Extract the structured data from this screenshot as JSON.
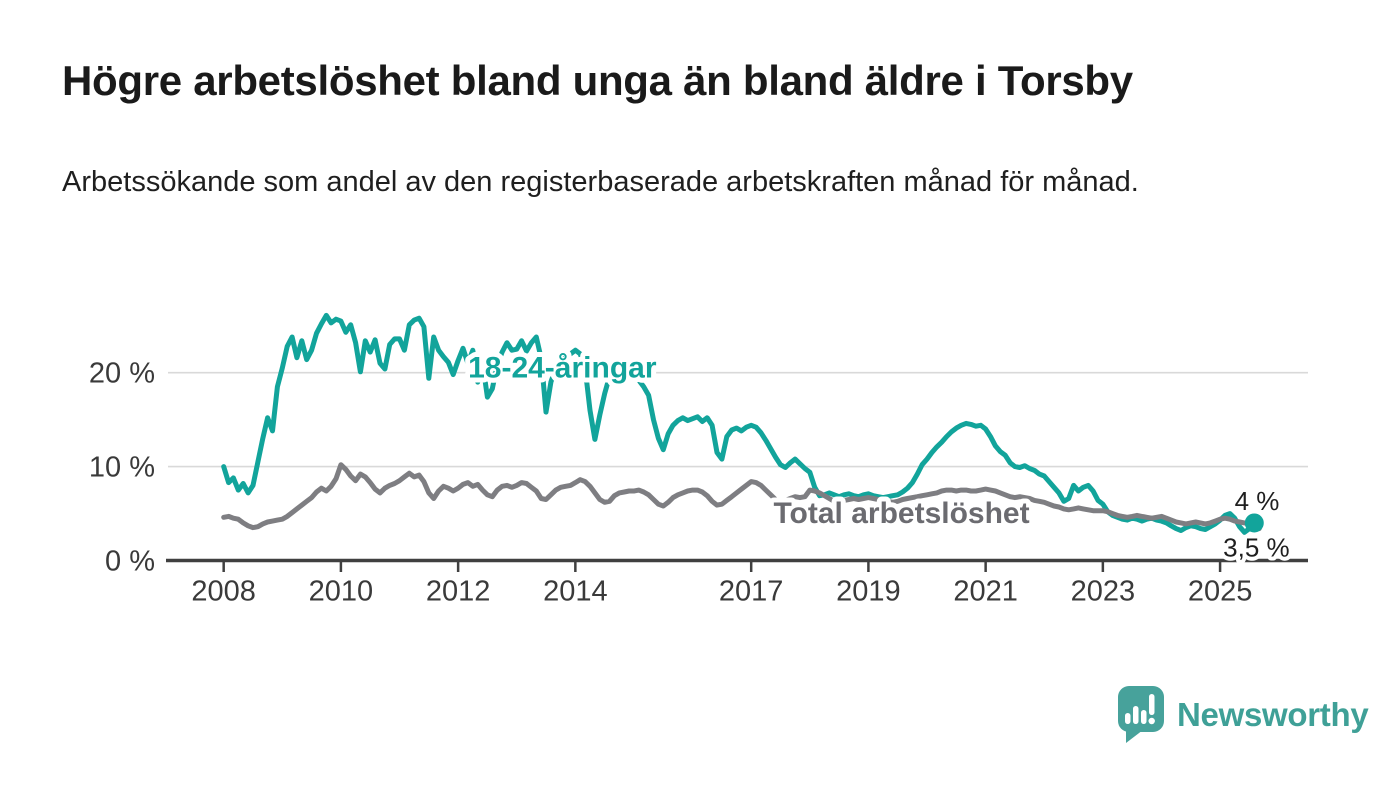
{
  "header": {
    "title": "Högre arbetslöshet bland unga än bland äldre i Torsby",
    "subtitle": "Arbetssökande som andel av den registerbaserade arbetskraften månad för månad."
  },
  "branding": {
    "name": "Newsworthy",
    "color": "#3fa097",
    "icon": "newsworthy-speech-bubble-chart-icon"
  },
  "chart_data": {
    "type": "line",
    "title": "Högre arbetslöshet bland unga än bland äldre i Torsby",
    "subtitle": "Arbetssökande som andel av den registerbaserade arbetskraften månad för månad.",
    "unit": "%",
    "grid": "horizontal-only",
    "legend_position": "inline-labels",
    "x_axis": {
      "min": 2007.05,
      "max": 2026.5,
      "ticks": [
        2008,
        2010,
        2012,
        2014,
        2017,
        2019,
        2021,
        2023,
        2025
      ],
      "tick_labels": [
        "2008",
        "2010",
        "2012",
        "2014",
        "2017",
        "2019",
        "2021",
        "2023",
        "2025"
      ]
    },
    "y_axis": {
      "min": 0,
      "max": 27.85,
      "ticks": [
        0,
        10,
        20
      ],
      "tick_labels": [
        "0 %",
        "10 %",
        "20 %"
      ]
    },
    "series": [
      {
        "id": "youth",
        "name": "18-24-åringar",
        "color": "#12a49b",
        "x_start": 2008.0,
        "frequency": "monthly",
        "end_dot": true,
        "last_value_label": "4 %",
        "values": [
          10.0,
          8.3,
          8.8,
          7.5,
          8.2,
          7.2,
          8.0,
          10.5,
          13.0,
          15.2,
          13.8,
          18.5,
          20.5,
          22.8,
          23.8,
          21.6,
          23.4,
          21.4,
          22.4,
          24.2,
          25.2,
          26.1,
          25.3,
          25.7,
          25.5,
          24.3,
          25.1,
          23.2,
          20.1,
          23.4,
          22.2,
          23.5,
          21.0,
          20.4,
          23.0,
          23.6,
          23.6,
          22.4,
          25.1,
          25.6,
          25.8,
          24.9,
          19.4,
          23.8,
          22.4,
          21.7,
          21.1,
          19.8,
          21.3,
          22.6,
          21.0,
          22.4,
          19.0,
          21.0,
          17.4,
          18.3,
          20.8,
          22.2,
          23.2,
          22.4,
          22.5,
          23.4,
          22.3,
          23.2,
          23.8,
          21.5,
          15.8,
          19.0,
          20.5,
          21.2,
          21.6,
          22.0,
          22.4,
          22.0,
          20.5,
          16.0,
          12.9,
          15.5,
          17.8,
          19.6,
          18.8,
          19.2,
          18.9,
          19.4,
          19.6,
          19.2,
          18.5,
          17.6,
          15.0,
          13.0,
          11.8,
          13.5,
          14.4,
          14.9,
          15.2,
          14.9,
          15.1,
          15.3,
          14.8,
          15.2,
          14.4,
          11.5,
          10.8,
          13.2,
          13.9,
          14.1,
          13.8,
          14.2,
          14.4,
          14.2,
          13.6,
          12.8,
          11.9,
          11.0,
          10.2,
          9.9,
          10.4,
          10.8,
          10.3,
          9.8,
          9.4,
          7.8,
          6.9,
          7.0,
          7.2,
          7.0,
          6.8,
          7.0,
          7.1,
          6.9,
          6.8,
          7.0,
          7.1,
          6.9,
          6.8,
          6.7,
          6.8,
          6.9,
          7.0,
          7.3,
          7.7,
          8.3,
          9.2,
          10.2,
          10.8,
          11.5,
          12.1,
          12.6,
          13.2,
          13.7,
          14.1,
          14.4,
          14.6,
          14.5,
          14.3,
          14.4,
          14.0,
          13.2,
          12.2,
          11.6,
          11.2,
          10.4,
          10.0,
          9.9,
          10.1,
          9.8,
          9.6,
          9.2,
          9.0,
          8.4,
          7.8,
          7.2,
          6.3,
          6.6,
          8.0,
          7.4,
          7.8,
          8.0,
          7.4,
          6.4,
          6.0,
          5.2,
          4.8,
          4.6,
          4.4,
          4.3,
          4.5,
          4.4,
          4.2,
          4.4,
          4.5,
          4.3,
          4.2,
          4.0,
          3.7,
          3.4,
          3.2,
          3.5,
          3.7,
          3.6,
          3.4,
          3.3,
          3.6,
          3.9,
          4.3,
          4.8,
          5.0,
          4.5,
          3.6,
          3.0,
          3.4,
          4.0
        ]
      },
      {
        "id": "total",
        "name": "Total arbetslöshet",
        "color": "#7e7e82",
        "x_start": 2008.0,
        "frequency": "monthly",
        "end_dot": false,
        "last_value_label": "3,5 %",
        "values": [
          4.6,
          4.7,
          4.5,
          4.4,
          4.0,
          3.7,
          3.5,
          3.6,
          3.9,
          4.1,
          4.2,
          4.3,
          4.4,
          4.7,
          5.1,
          5.5,
          5.9,
          6.3,
          6.7,
          7.3,
          7.7,
          7.4,
          7.9,
          8.7,
          10.2,
          9.7,
          9.0,
          8.5,
          9.2,
          8.9,
          8.3,
          7.6,
          7.2,
          7.7,
          8.0,
          8.2,
          8.5,
          8.9,
          9.3,
          8.9,
          9.1,
          8.4,
          7.2,
          6.6,
          7.4,
          7.9,
          7.7,
          7.4,
          7.7,
          8.1,
          8.3,
          7.9,
          8.1,
          7.5,
          7.0,
          6.8,
          7.5,
          7.9,
          8.0,
          7.8,
          8.0,
          8.3,
          8.2,
          7.8,
          7.4,
          6.6,
          6.5,
          7.0,
          7.5,
          7.8,
          7.9,
          8.0,
          8.3,
          8.6,
          8.4,
          7.9,
          7.2,
          6.5,
          6.2,
          6.3,
          6.9,
          7.2,
          7.3,
          7.4,
          7.4,
          7.5,
          7.3,
          7.0,
          6.5,
          6.0,
          5.8,
          6.2,
          6.7,
          7.0,
          7.2,
          7.4,
          7.5,
          7.5,
          7.3,
          6.9,
          6.3,
          5.9,
          6.0,
          6.4,
          6.8,
          7.2,
          7.6,
          8.0,
          8.4,
          8.3,
          8.0,
          7.5,
          7.0,
          6.5,
          6.2,
          6.4,
          6.6,
          6.8,
          6.7,
          6.8,
          7.5,
          7.4,
          7.2,
          6.9,
          6.6,
          6.3,
          6.2,
          6.4,
          6.5,
          6.6,
          6.5,
          6.6,
          6.7,
          6.6,
          6.5,
          6.4,
          6.3,
          6.2,
          6.3,
          6.5,
          6.6,
          6.7,
          6.8,
          6.9,
          7.0,
          7.1,
          7.2,
          7.4,
          7.5,
          7.5,
          7.4,
          7.5,
          7.5,
          7.4,
          7.4,
          7.5,
          7.6,
          7.5,
          7.4,
          7.2,
          7.0,
          6.8,
          6.7,
          6.8,
          6.7,
          6.6,
          6.4,
          6.3,
          6.2,
          6.0,
          5.8,
          5.7,
          5.5,
          5.4,
          5.5,
          5.6,
          5.5,
          5.4,
          5.3,
          5.3,
          5.3,
          5.2,
          5.0,
          4.8,
          4.7,
          4.6,
          4.7,
          4.8,
          4.7,
          4.6,
          4.5,
          4.6,
          4.7,
          4.5,
          4.3,
          4.1,
          4.0,
          3.9,
          4.0,
          4.1,
          4.0,
          3.9,
          4.0,
          4.2,
          4.4,
          4.5,
          4.4,
          4.2,
          4.1,
          4.0,
          3.9,
          3.7,
          3.4
        ]
      }
    ],
    "series_labels": [
      {
        "text": "18-24-åringar",
        "x": 2012.17,
        "y": 19.5,
        "color": "#12a49b",
        "anchor": "start"
      },
      {
        "text": "Total arbetslöshet",
        "x": 2017.38,
        "y": 4.0,
        "color": "#6b6b70",
        "anchor": "start"
      }
    ],
    "end_labels": [
      {
        "text": "4 %",
        "x": 2025.63,
        "y": 5.4
      },
      {
        "text": "3,5 %",
        "x": 2025.62,
        "y": 0.4
      }
    ]
  }
}
